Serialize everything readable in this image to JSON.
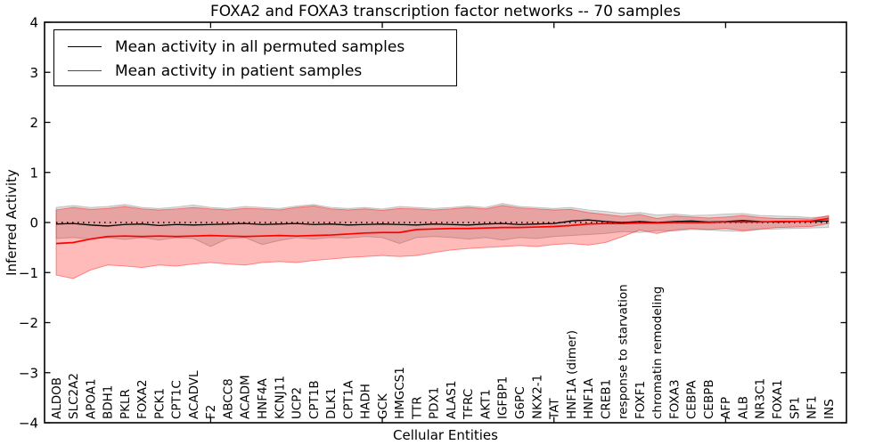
{
  "title": "FOXA2 and FOXA3 transcription factor networks -- 70 samples",
  "axes": {
    "xlabel": "Cellular Entities",
    "ylabel": "Inferred Activity"
  },
  "legend": {
    "items": [
      {
        "label": "Mean activity in all permuted samples",
        "color": "#000000"
      },
      {
        "label": "Mean activity in patient samples",
        "color": "#ff0000"
      }
    ]
  },
  "chart_data": {
    "type": "line",
    "title": "FOXA2 and FOXA3 transcription factor networks -- 70 samples",
    "xlabel": "Cellular Entities",
    "ylabel": "Inferred Activity",
    "ylim": [
      -4,
      4
    ],
    "yticks": [
      -4,
      -3,
      -2,
      -1,
      0,
      1,
      2,
      3,
      4
    ],
    "grid": false,
    "legend_position": "upper-left",
    "zero_line": "dotted",
    "categories": [
      "ALDOB",
      "SLC2A2",
      "APOA1",
      "BDH1",
      "PKLR",
      "FOXA2",
      "PCK1",
      "CPT1C",
      "ACADVL",
      "F2",
      "ABCC8",
      "ACADM",
      "HNF4A",
      "KCNJ11",
      "UCP2",
      "CPT1B",
      "DLK1",
      "CPT1A",
      "HADH",
      "GCK",
      "HMGCS1",
      "TTR",
      "PDX1",
      "ALAS1",
      "TFRC",
      "AKT1",
      "IGFBP1",
      "G6PC",
      "NKX2-1",
      "TAT",
      "HNF1A (dimer)",
      "HNF1A",
      "CREB1",
      "response to starvation",
      "FOXF1",
      "chromatin remodeling",
      "FOXA3",
      "CEBPA",
      "CEBPB",
      "AFP",
      "ALB",
      "NR3C1",
      "FOXA1",
      "SP1",
      "NF1",
      "INS"
    ],
    "series": [
      {
        "name": "Mean activity in all permuted samples",
        "color": "#000000",
        "values": [
          -0.03,
          -0.02,
          -0.05,
          -0.07,
          -0.04,
          -0.03,
          -0.06,
          -0.04,
          -0.05,
          -0.04,
          -0.03,
          -0.02,
          -0.04,
          -0.03,
          -0.02,
          -0.04,
          -0.03,
          -0.05,
          -0.04,
          -0.03,
          -0.04,
          -0.05,
          -0.03,
          -0.04,
          -0.05,
          -0.03,
          -0.02,
          -0.04,
          -0.03,
          -0.02,
          0.03,
          0.05,
          0.02,
          0.0,
          0.02,
          0.0,
          0.02,
          0.03,
          0.01,
          0.02,
          0.04,
          0.02,
          0.01,
          0.02,
          0.02,
          0.03
        ]
      },
      {
        "name": "Mean activity in patient samples",
        "color": "#ff0000",
        "values": [
          -0.42,
          -0.4,
          -0.33,
          -0.28,
          -0.27,
          -0.28,
          -0.27,
          -0.28,
          -0.27,
          -0.26,
          -0.27,
          -0.28,
          -0.27,
          -0.26,
          -0.27,
          -0.26,
          -0.25,
          -0.23,
          -0.21,
          -0.2,
          -0.2,
          -0.14,
          -0.13,
          -0.12,
          -0.12,
          -0.11,
          -0.1,
          -0.1,
          -0.09,
          -0.08,
          -0.06,
          -0.03,
          -0.02,
          -0.02,
          -0.01,
          -0.01,
          0.0,
          0.0,
          0.0,
          0.01,
          0.01,
          0.01,
          0.02,
          0.02,
          0.03,
          0.08
        ]
      }
    ],
    "bands": [
      {
        "name": "permuted samples range",
        "color": "#000000",
        "opacity": 0.13,
        "upper": [
          0.3,
          0.34,
          0.3,
          0.32,
          0.36,
          0.3,
          0.28,
          0.31,
          0.35,
          0.3,
          0.28,
          0.32,
          0.3,
          0.28,
          0.33,
          0.36,
          0.3,
          0.28,
          0.3,
          0.27,
          0.32,
          0.3,
          0.28,
          0.3,
          0.33,
          0.3,
          0.38,
          0.32,
          0.3,
          0.28,
          0.3,
          0.25,
          0.22,
          0.18,
          0.2,
          0.15,
          0.17,
          0.14,
          0.15,
          0.17,
          0.18,
          0.14,
          0.13,
          0.12,
          0.1,
          0.12
        ],
        "lower": [
          -0.32,
          -0.3,
          -0.33,
          -0.3,
          -0.34,
          -0.3,
          -0.35,
          -0.3,
          -0.32,
          -0.48,
          -0.32,
          -0.3,
          -0.44,
          -0.36,
          -0.3,
          -0.33,
          -0.3,
          -0.31,
          -0.28,
          -0.3,
          -0.42,
          -0.3,
          -0.28,
          -0.3,
          -0.33,
          -0.3,
          -0.35,
          -0.3,
          -0.32,
          -0.28,
          -0.26,
          -0.24,
          -0.22,
          -0.18,
          -0.2,
          -0.16,
          -0.17,
          -0.14,
          -0.15,
          -0.17,
          -0.18,
          -0.14,
          -0.13,
          -0.12,
          -0.11,
          -0.1
        ]
      },
      {
        "name": "patient samples range",
        "color": "#ff0000",
        "opacity": 0.27,
        "upper": [
          0.25,
          0.3,
          0.26,
          0.28,
          0.32,
          0.27,
          0.25,
          0.27,
          0.3,
          0.27,
          0.25,
          0.28,
          0.27,
          0.25,
          0.3,
          0.33,
          0.27,
          0.25,
          0.27,
          0.24,
          0.28,
          0.27,
          0.25,
          0.27,
          0.3,
          0.27,
          0.34,
          0.29,
          0.27,
          0.25,
          0.26,
          0.2,
          0.16,
          0.12,
          0.16,
          0.08,
          0.13,
          0.11,
          0.09,
          0.11,
          0.14,
          0.1,
          0.08,
          0.08,
          0.07,
          0.14
        ],
        "lower": [
          -1.05,
          -1.12,
          -0.95,
          -0.85,
          -0.87,
          -0.9,
          -0.85,
          -0.87,
          -0.83,
          -0.8,
          -0.83,
          -0.85,
          -0.8,
          -0.78,
          -0.8,
          -0.76,
          -0.73,
          -0.7,
          -0.68,
          -0.66,
          -0.68,
          -0.66,
          -0.6,
          -0.55,
          -0.52,
          -0.5,
          -0.48,
          -0.46,
          -0.48,
          -0.44,
          -0.42,
          -0.45,
          -0.4,
          -0.28,
          -0.15,
          -0.22,
          -0.15,
          -0.12,
          -0.14,
          -0.12,
          -0.16,
          -0.13,
          -0.1,
          -0.09,
          -0.08,
          -0.02
        ]
      }
    ]
  }
}
